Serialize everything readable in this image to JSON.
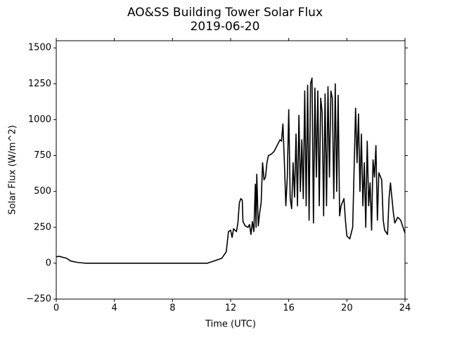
{
  "chart_data": {
    "type": "line",
    "title": "AO&SS Building Tower Solar Flux",
    "subtitle": "2019-06-20",
    "x_label": "Time (UTC)",
    "y_label": "Solar Flux (W/m^2)",
    "xlim": [
      0,
      24
    ],
    "xticks": [
      0,
      4,
      8,
      12,
      16,
      20,
      24
    ],
    "ylim": [
      -250,
      1550
    ],
    "yticks": [
      {
        "value": -250,
        "label": "−250"
      },
      0,
      250,
      500,
      750,
      1000,
      1250,
      1500
    ],
    "series": [
      {
        "name": "Solar Flux",
        "color": "#000000",
        "x": [
          0,
          0.2,
          0.5,
          0.7,
          1.0,
          1.5,
          2,
          10.4,
          11,
          11.4,
          11.7,
          11.85,
          12.0,
          12.1,
          12.2,
          12.4,
          12.5,
          12.6,
          12.7,
          12.8,
          12.85,
          13.0,
          13.2,
          13.3,
          13.4,
          13.5,
          13.6,
          13.7,
          13.75,
          13.8,
          13.9,
          14.0,
          14.1,
          14.2,
          14.3,
          14.4,
          14.5,
          14.6,
          14.8,
          15.0,
          15.2,
          15.4,
          15.5,
          15.6,
          15.7,
          15.8,
          15.9,
          16.0,
          16.1,
          16.2,
          16.3,
          16.4,
          16.5,
          16.6,
          16.7,
          16.8,
          16.9,
          17.0,
          17.1,
          17.2,
          17.3,
          17.4,
          17.5,
          17.6,
          17.7,
          17.8,
          17.9,
          18.0,
          18.1,
          18.2,
          18.3,
          18.4,
          18.5,
          18.6,
          18.7,
          18.8,
          18.9,
          19.0,
          19.1,
          19.2,
          19.3,
          19.4,
          19.5,
          19.6,
          19.8,
          19.9,
          20.0,
          20.2,
          20.4,
          20.6,
          20.7,
          20.8,
          20.9,
          21.0,
          21.1,
          21.2,
          21.3,
          21.4,
          21.5,
          21.6,
          21.7,
          21.8,
          21.9,
          22.0,
          22.1,
          22.2,
          22.4,
          22.5,
          22.6,
          22.8,
          22.9,
          23.0,
          23.2,
          23.3,
          23.5,
          23.7,
          23.9,
          24
        ],
        "values": [
          45,
          48,
          40,
          35,
          15,
          5,
          0,
          0,
          20,
          35,
          80,
          220,
          230,
          180,
          240,
          220,
          280,
          420,
          450,
          440,
          290,
          260,
          250,
          270,
          200,
          290,
          220,
          550,
          250,
          620,
          260,
          350,
          420,
          700,
          580,
          600,
          700,
          750,
          760,
          780,
          820,
          860,
          850,
          970,
          700,
          400,
          600,
          1070,
          450,
          380,
          700,
          460,
          900,
          400,
          1030,
          500,
          860,
          450,
          1200,
          400,
          1240,
          300,
          1250,
          1290,
          280,
          1220,
          600,
          1200,
          400,
          1150,
          1050,
          330,
          1180,
          400,
          1230,
          600,
          1200,
          1150,
          450,
          1250,
          500,
          1170,
          330,
          400,
          450,
          300,
          190,
          170,
          250,
          1080,
          700,
          1040,
          500,
          900,
          400,
          700,
          250,
          850,
          400,
          560,
          230,
          720,
          600,
          820,
          300,
          630,
          580,
          300,
          230,
          200,
          450,
          560,
          350,
          280,
          320,
          300,
          240,
          210
        ]
      }
    ]
  }
}
